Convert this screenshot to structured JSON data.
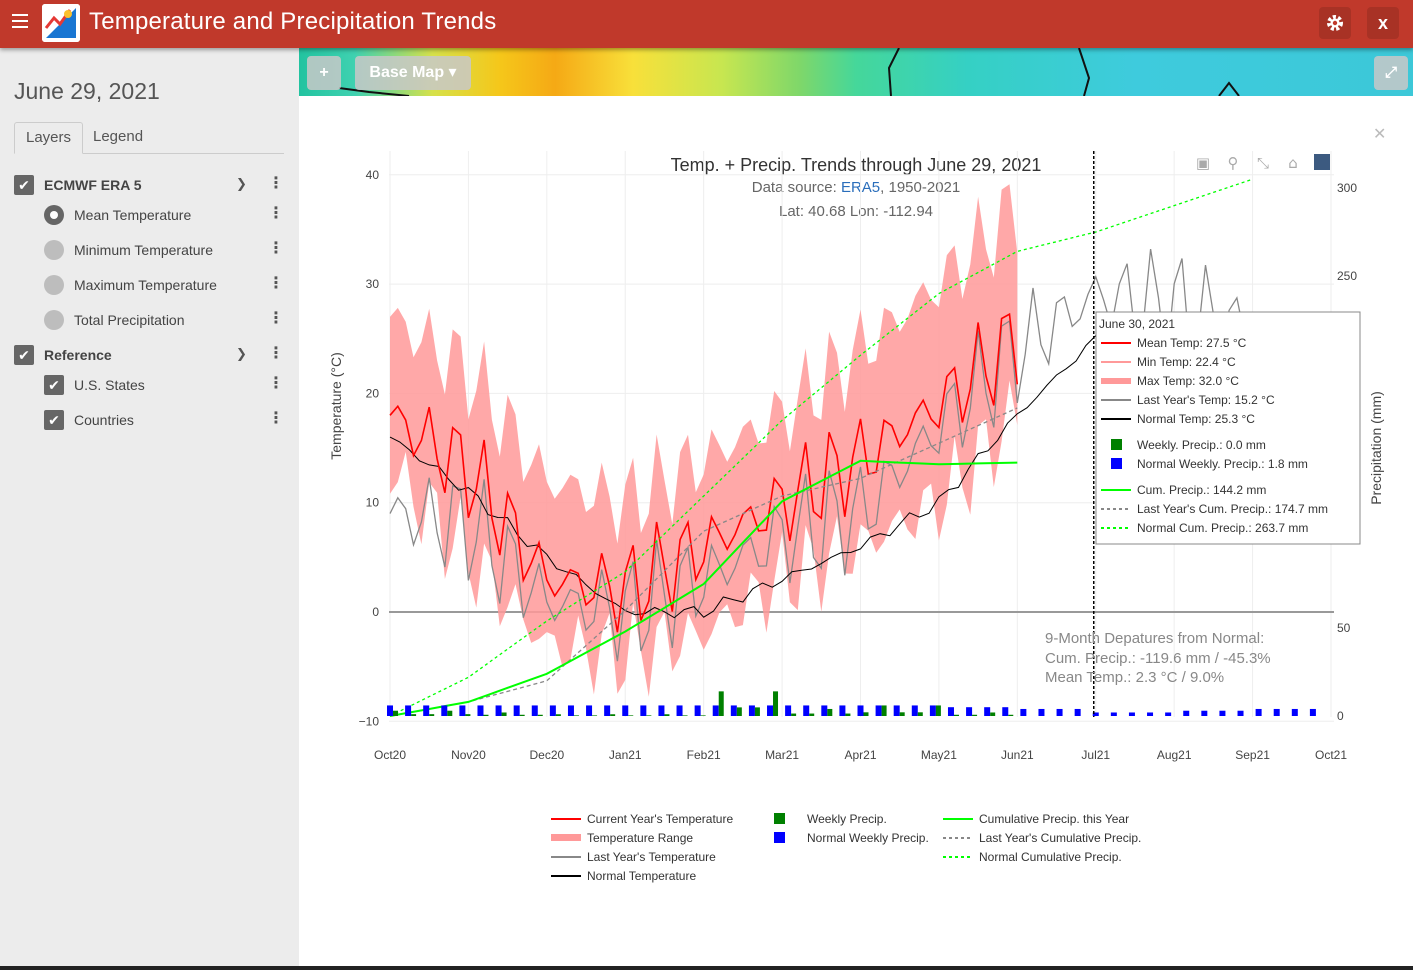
{
  "header": {
    "title": "Temperature and Precipitation Trends",
    "close_label": "x"
  },
  "sidebar": {
    "date": "June 29, 2021",
    "tabs": [
      {
        "label": "Layers",
        "active": true
      },
      {
        "label": "Legend",
        "active": false
      }
    ],
    "groups": [
      {
        "label": "ECMWF ERA 5",
        "checked": true,
        "items": [
          {
            "label": "Mean Temperature",
            "selected": true
          },
          {
            "label": "Minimum Temperature",
            "selected": false
          },
          {
            "label": "Maximum Temperature",
            "selected": false
          },
          {
            "label": "Total Precipitation",
            "selected": false
          }
        ]
      },
      {
        "label": "Reference",
        "checked": true,
        "items": [
          {
            "label": "U.S. States",
            "checked": true
          },
          {
            "label": "Countries",
            "checked": true
          }
        ]
      }
    ]
  },
  "map": {
    "add_label": "+",
    "basemap_label": "Base Map ▾",
    "expand_icon": "expand-icon"
  },
  "chart_data": {
    "type": "line",
    "title": "Temp. + Precip. Trends through June 29, 2021",
    "source_prefix": "Data source: ",
    "source_link": "ERA5",
    "source_suffix": ", 1950-2021",
    "location": "Lat: 40.68 Lon: -112.94",
    "ylabel": "Temperature (°C)",
    "y2label": "Precipitation (mm)",
    "ylim": [
      -10,
      40
    ],
    "y2lim": [
      0,
      300
    ],
    "yticks": [
      -10,
      0,
      10,
      20,
      30,
      40
    ],
    "yticks_labels": [
      "−10",
      "0",
      "10",
      "20",
      "30",
      "40"
    ],
    "y2ticks": [
      0,
      50,
      250,
      300
    ],
    "x_ticks": [
      "Oct20",
      "Nov20",
      "Dec20",
      "Jan21",
      "Feb21",
      "Mar21",
      "Apr21",
      "May21",
      "Jun21",
      "Jul21",
      "Aug21",
      "Sep21",
      "Oct21"
    ],
    "cursor_date": "Jul21",
    "months": [
      "Oct20",
      "Nov20",
      "Dec20",
      "Jan21",
      "Feb21",
      "Mar21",
      "Apr21",
      "May21",
      "Jun21",
      "Jul21",
      "Aug21",
      "Sep21",
      "Oct21"
    ],
    "series": [
      {
        "name": "Current Year's Temperature",
        "color": "#ff0000",
        "values": [
          18,
          13,
          3,
          2,
          6,
          10,
          14,
          19,
          25
        ]
      },
      {
        "name": "Temperature Range",
        "color": "#ff9999",
        "min": [
          13,
          5,
          -3,
          -4,
          -2,
          3,
          6,
          10,
          18
        ],
        "max": [
          27,
          22,
          12,
          10,
          14,
          18,
          24,
          30,
          37
        ]
      },
      {
        "name": "Last Year's Temperature",
        "color": "#888888",
        "values": [
          9,
          8,
          1,
          0,
          3,
          7,
          9,
          17,
          24,
          29,
          28,
          26
        ]
      },
      {
        "name": "Normal Temperature",
        "color": "#000000",
        "values": [
          16,
          11,
          5,
          0,
          0,
          3,
          6,
          10,
          18,
          25,
          25,
          21,
          14
        ]
      },
      {
        "name": "Weekly Precip.",
        "color": "#008000",
        "values": [
          3,
          2,
          1,
          1,
          14,
          4,
          6,
          2,
          0
        ]
      },
      {
        "name": "Normal Weekly Precip.",
        "color": "#0000ff",
        "values": [
          6,
          6,
          6,
          6,
          6,
          6,
          6,
          5,
          4,
          2,
          3,
          4,
          5
        ]
      },
      {
        "name": "Cumulative Precip. this Year",
        "color": "#00ff00",
        "values": [
          0,
          8,
          24,
          48,
          75,
          122,
          145,
          143,
          144
        ]
      },
      {
        "name": "Last Year's Cumulative Precip.",
        "color": "#888888",
        "values": [
          0,
          8,
          20,
          60,
          105,
          125,
          135,
          155,
          175
        ]
      },
      {
        "name": "Normal Cumulative Precip.",
        "color": "#00ff00",
        "values": [
          0,
          22,
          54,
          82,
          125,
          168,
          205,
          240,
          264,
          275,
          290,
          305
        ]
      }
    ],
    "departures": {
      "heading": "9-Month Depatures from Normal:",
      "cum": "Cum. Precip.: -119.6 mm / -45.3%",
      "mean": "Mean Temp.: 2.3 °C / 9.0%"
    },
    "tooltip": {
      "date": "June 30, 2021",
      "rows": [
        {
          "label": "Mean Temp: 27.5 °C",
          "color": "#ff0000",
          "kind": "line"
        },
        {
          "label": "Min Temp: 22.4 °C",
          "color": "#ff9999",
          "kind": "line"
        },
        {
          "label": "Max Temp: 32.0 °C",
          "color": "#ff9999",
          "kind": "thick"
        },
        {
          "label": "Last Year's Temp: 15.2 °C",
          "color": "#888888",
          "kind": "line"
        },
        {
          "label": "Normal Temp: 25.3 °C",
          "color": "#000000",
          "kind": "line"
        },
        {
          "label": "Weekly. Precip.: 0.0 mm",
          "color": "#008000",
          "kind": "box"
        },
        {
          "label": "Normal Weekly. Precip.: 1.8 mm",
          "color": "#0000ff",
          "kind": "box"
        },
        {
          "label": "Cum. Precip.: 144.2 mm",
          "color": "#00ff00",
          "kind": "line"
        },
        {
          "label": "Last Year's Cum. Precip.: 174.7 mm",
          "color": "#888888",
          "kind": "dash"
        },
        {
          "label": "Normal Cum. Precip.: 263.7 mm",
          "color": "#00ff00",
          "kind": "dash"
        }
      ]
    },
    "legend": [
      {
        "label": "Current Year's Temperature",
        "color": "#ff0000",
        "kind": "line"
      },
      {
        "label": "Temperature Range",
        "color": "#ff9999",
        "kind": "thick"
      },
      {
        "label": "Last Year's Temperature",
        "color": "#888888",
        "kind": "line"
      },
      {
        "label": "Normal Temperature",
        "color": "#000000",
        "kind": "line"
      },
      {
        "label": "Weekly Precip.",
        "color": "#008000",
        "kind": "box"
      },
      {
        "label": "Normal Weekly Precip.",
        "color": "#0000ff",
        "kind": "box"
      },
      {
        "label": "Cumulative Precip. this Year",
        "color": "#00ff00",
        "kind": "line"
      },
      {
        "label": "Last Year's Cumulative Precip.",
        "color": "#888888",
        "kind": "dash"
      },
      {
        "label": "Normal Cumulative Precip.",
        "color": "#00ff00",
        "kind": "dash"
      }
    ]
  }
}
